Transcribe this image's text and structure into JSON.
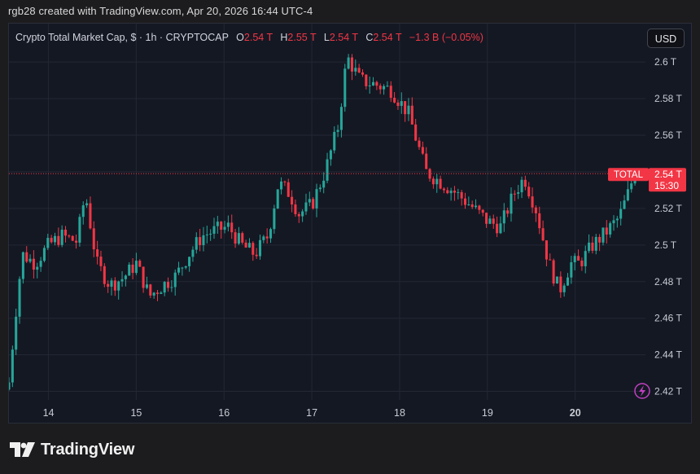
{
  "credit": "rgb28 created with TradingView.com, Apr 20, 2026 16:44 UTC-4",
  "legend": {
    "symbol": "Crypto Total Market Cap, $ · 1h · CRYPTOCAP",
    "o_label": "O",
    "o_value": "2.54 T",
    "h_label": "H",
    "h_value": "2.55 T",
    "l_label": "L",
    "l_value": "2.54 T",
    "c_label": "C",
    "c_value": "2.54 T",
    "change": "−1.3 B (−0.05%)"
  },
  "currency_button": "USD",
  "brand": "TradingView",
  "last_price": {
    "tag": "TOTAL",
    "value": "2.54 T",
    "countdown": "15:30",
    "level": 2.539
  },
  "colors": {
    "up": "#26a69a",
    "down": "#f23645",
    "bg": "#141823",
    "grid": "#232734",
    "axis_text": "#c9ccd3"
  },
  "icons": {
    "lightning": "lightning-icon",
    "logo": "tradingview-logo"
  },
  "chart_data": {
    "type": "candlestick",
    "x_axis": {
      "ticks": [
        "14",
        "15",
        "16",
        "17",
        "18",
        "19",
        "20"
      ],
      "bold_tick": "20",
      "range": [
        13.55,
        20.8
      ]
    },
    "y_axis": {
      "ticks": [
        "2.42 T",
        "2.44 T",
        "2.46 T",
        "2.48 T",
        "2.5 T",
        "2.52 T",
        "2.54 T",
        "2.56 T",
        "2.58 T",
        "2.6 T"
      ],
      "tick_values": [
        2.42,
        2.44,
        2.46,
        2.48,
        2.5,
        2.52,
        2.54,
        2.56,
        2.58,
        2.6
      ],
      "range": [
        2.402,
        2.621
      ],
      "unit": "T"
    },
    "anchors": [
      [
        13.55,
        2.425
      ],
      [
        13.62,
        2.46
      ],
      [
        13.7,
        2.495
      ],
      [
        13.85,
        2.49
      ],
      [
        14.0,
        2.5
      ],
      [
        14.15,
        2.505
      ],
      [
        14.32,
        2.502
      ],
      [
        14.42,
        2.528
      ],
      [
        14.55,
        2.49
      ],
      [
        14.7,
        2.478
      ],
      [
        14.85,
        2.482
      ],
      [
        15.0,
        2.49
      ],
      [
        15.15,
        2.472
      ],
      [
        15.3,
        2.478
      ],
      [
        15.45,
        2.483
      ],
      [
        15.6,
        2.495
      ],
      [
        15.75,
        2.505
      ],
      [
        15.9,
        2.508
      ],
      [
        16.05,
        2.51
      ],
      [
        16.2,
        2.5
      ],
      [
        16.35,
        2.495
      ],
      [
        16.5,
        2.505
      ],
      [
        16.62,
        2.534
      ],
      [
        16.75,
        2.528
      ],
      [
        16.85,
        2.517
      ],
      [
        17.0,
        2.522
      ],
      [
        17.15,
        2.54
      ],
      [
        17.3,
        2.565
      ],
      [
        17.4,
        2.603
      ],
      [
        17.55,
        2.59
      ],
      [
        17.7,
        2.588
      ],
      [
        17.9,
        2.585
      ],
      [
        18.1,
        2.572
      ],
      [
        18.3,
        2.54
      ],
      [
        18.45,
        2.535
      ],
      [
        18.6,
        2.53
      ],
      [
        18.8,
        2.522
      ],
      [
        19.0,
        2.513
      ],
      [
        19.15,
        2.51
      ],
      [
        19.3,
        2.528
      ],
      [
        19.42,
        2.537
      ],
      [
        19.55,
        2.52
      ],
      [
        19.7,
        2.49
      ],
      [
        19.82,
        2.475
      ],
      [
        19.95,
        2.49
      ],
      [
        20.05,
        2.49
      ],
      [
        20.2,
        2.5
      ],
      [
        20.35,
        2.507
      ],
      [
        20.5,
        2.515
      ],
      [
        20.6,
        2.528
      ],
      [
        20.68,
        2.54
      ]
    ]
  }
}
